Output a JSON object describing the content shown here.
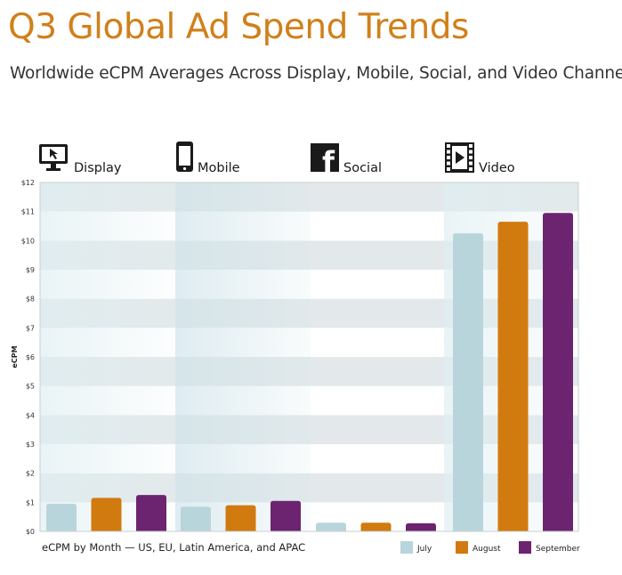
{
  "title": "Q3 Global Ad Spend Trends",
  "subtitle": "Worldwide eCPM Averages Across Display, Mobile, Social, and Video Channels",
  "chart_data": {
    "type": "bar",
    "categories": [
      "Display",
      "Mobile",
      "Social",
      "Video"
    ],
    "series": [
      {
        "name": "July",
        "color": "#b9d5dc",
        "values": [
          0.95,
          0.85,
          0.3,
          10.25
        ]
      },
      {
        "name": "August",
        "color": "#d17a0f",
        "values": [
          1.15,
          0.9,
          0.3,
          10.65
        ]
      },
      {
        "name": "September",
        "color": "#6c2470",
        "values": [
          1.25,
          1.05,
          0.28,
          10.95
        ]
      }
    ],
    "category_icons": [
      "monitor-icon",
      "mobile-phone-icon",
      "facebook-icon",
      "film-play-icon"
    ],
    "ylabel": "eCPM",
    "ylim": [
      0,
      12
    ],
    "yticks": [
      "$0",
      "$1",
      "$2",
      "$3",
      "$4",
      "$5",
      "$6",
      "$7",
      "$8",
      "$9",
      "$10",
      "$11",
      "$12"
    ],
    "caption": "eCPM by Month — US, EU, Latin America, and APAC",
    "legend_position": "bottom-right",
    "grid": true
  }
}
